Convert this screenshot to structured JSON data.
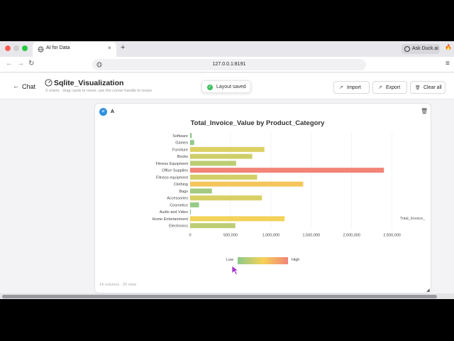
{
  "browser": {
    "tab_title": "AI for Data",
    "tab_close": "×",
    "new_tab": "+",
    "url": "127.0.0.1:8191",
    "ask_button": "Ask Duck.ai",
    "back": "←",
    "forward": "→",
    "reload": "↻",
    "menu": "≡",
    "flame": "🔥"
  },
  "header": {
    "back_arrow": "←",
    "back_label": "Chat",
    "title": "Sqlite_Visualization",
    "subtitle": "3 charts · drag cards to move, use the corner handle to resize",
    "toast": "Layout saved",
    "toast_check": "✓",
    "buttons": [
      {
        "icon": "import-icon",
        "glyph": "↗",
        "label": "Import"
      },
      {
        "icon": "export-icon",
        "glyph": "↗",
        "label": "Export"
      },
      {
        "icon": "trash-icon",
        "glyph": "🗑",
        "label": "Clear all"
      }
    ]
  },
  "card": {
    "avatar": "ai",
    "label": "A",
    "trash": "🗑",
    "footer": "14 columns · 20 rows",
    "resize": "◢"
  },
  "colors": {
    "low": "#8cc98c",
    "mid": "#f5d257",
    "high": "#f28478"
  },
  "chart_data": {
    "type": "bar",
    "orientation": "horizontal",
    "title": "Total_Invoice_Value by Product_Category",
    "xlabel": "Total_Invoice_",
    "ylabel": "",
    "categories": [
      "Software",
      "Games",
      "Furniture",
      "Books",
      "Fitness Equipment",
      "Office Supplies",
      "Fitness equipment",
      "Clothing",
      "Bags",
      "Accessories",
      "Cosmetics",
      "Audio and Video",
      "Home Entertainment",
      "Electronics"
    ],
    "values": [
      20000,
      50000,
      920000,
      770000,
      570000,
      2400000,
      830000,
      1400000,
      270000,
      890000,
      110000,
      8000,
      1170000,
      560000
    ],
    "x_ticks": [
      "0",
      "500,000",
      "1,000,000",
      "1,500,000",
      "2,000,000",
      "2,500,000"
    ],
    "xlim": [
      0,
      2600000
    ],
    "grid": true,
    "legend": {
      "type": "color-gradient",
      "low_label": "Low",
      "high_label": "High",
      "placement": "bottom-center"
    }
  }
}
